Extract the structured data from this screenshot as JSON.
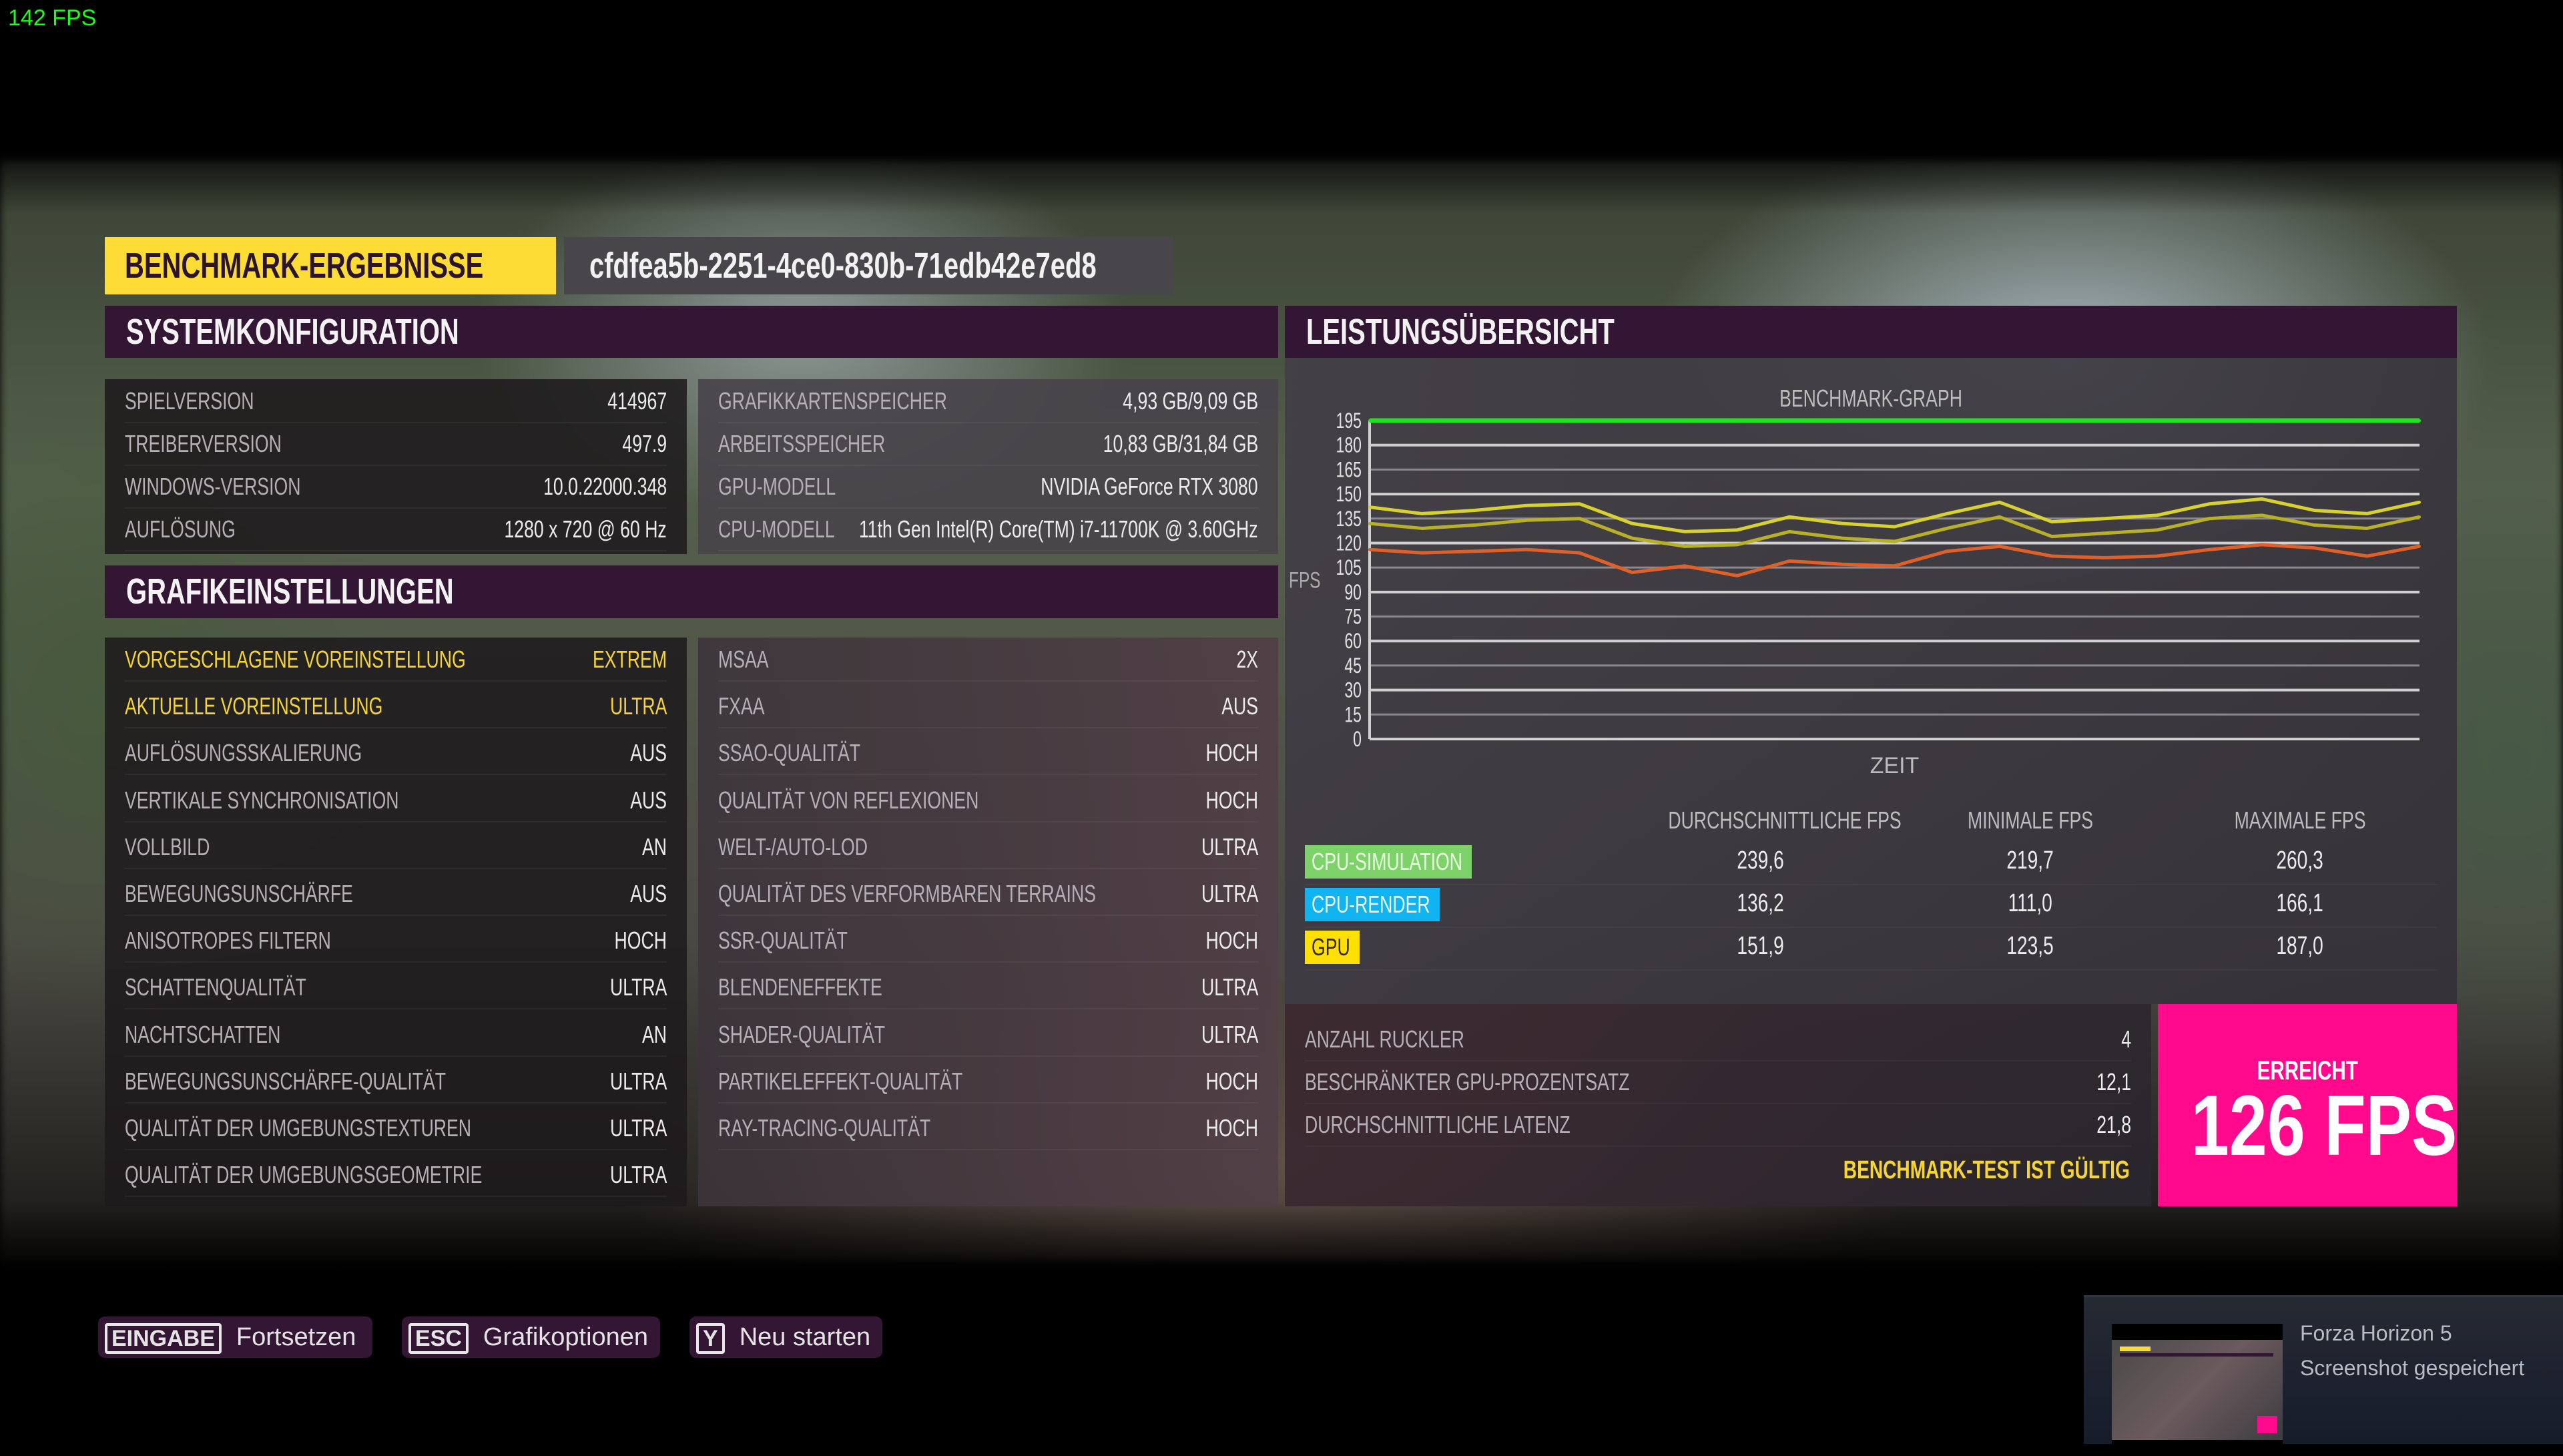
{
  "overlay": {
    "fps_counter": "142 FPS",
    "fps_color": "#1aff1a"
  },
  "header": {
    "title": "BENCHMARK-ERGEBNISSE",
    "benchmark_id": "cfdfea5b-2251-4ce0-830b-71edb42e7ed8"
  },
  "system": {
    "title": "SYSTEMKONFIGURATION",
    "left": [
      {
        "label": "SPIELVERSION",
        "value": "414967"
      },
      {
        "label": "TREIBERVERSION",
        "value": "497.9"
      },
      {
        "label": "WINDOWS-VERSION",
        "value": "10.0.22000.348"
      },
      {
        "label": "AUFLÖSUNG",
        "value": "1280 x 720 @ 60 Hz"
      }
    ],
    "right": [
      {
        "label": "GRAFIKKARTENSPEICHER",
        "value": "4,93 GB/9,09 GB"
      },
      {
        "label": "ARBEITSSPEICHER",
        "value": "10,83 GB/31,84 GB"
      },
      {
        "label": "GPU-MODELL",
        "value": "NVIDIA GeForce RTX 3080"
      },
      {
        "label": "CPU-MODELL",
        "value": "11th Gen Intel(R) Core(TM) i7-11700K @ 3.60GHz"
      }
    ]
  },
  "graphics": {
    "title": "GRAFIKEINSTELLUNGEN",
    "left": [
      {
        "label": "VORGESCHLAGENE VOREINSTELLUNG",
        "value": "EXTREM",
        "highlight": true
      },
      {
        "label": "AKTUELLE VOREINSTELLUNG",
        "value": "ULTRA",
        "highlight": true
      },
      {
        "label": "AUFLÖSUNGSSKALIERUNG",
        "value": "AUS"
      },
      {
        "label": "VERTIKALE SYNCHRONISATION",
        "value": "AUS"
      },
      {
        "label": "VOLLBILD",
        "value": "AN"
      },
      {
        "label": "BEWEGUNGSUNSCHÄRFE",
        "value": "AUS"
      },
      {
        "label": "ANISOTROPES FILTERN",
        "value": "HOCH"
      },
      {
        "label": "SCHATTENQUALITÄT",
        "value": "ULTRA"
      },
      {
        "label": "NACHTSCHATTEN",
        "value": "AN"
      },
      {
        "label": "BEWEGUNGSUNSCHÄRFE-QUALITÄT",
        "value": "ULTRA"
      },
      {
        "label": "QUALITÄT DER UMGEBUNGSTEXTUREN",
        "value": "ULTRA"
      },
      {
        "label": "QUALITÄT DER UMGEBUNGSGEOMETRIE",
        "value": "ULTRA"
      }
    ],
    "right": [
      {
        "label": "MSAA",
        "value": "2X"
      },
      {
        "label": "FXAA",
        "value": "AUS"
      },
      {
        "label": "SSAO-QUALITÄT",
        "value": "HOCH"
      },
      {
        "label": "QUALITÄT VON REFLEXIONEN",
        "value": "HOCH"
      },
      {
        "label": "WELT-/AUTO-LOD",
        "value": "ULTRA"
      },
      {
        "label": "QUALITÄT DES VERFORMBAREN TERRAINS",
        "value": "ULTRA"
      },
      {
        "label": "SSR-QUALITÄT",
        "value": "HOCH"
      },
      {
        "label": "BLENDENEFFEKTE",
        "value": "ULTRA"
      },
      {
        "label": "SHADER-QUALITÄT",
        "value": "ULTRA"
      },
      {
        "label": "PARTIKELEFFEKT-QUALITÄT",
        "value": "HOCH"
      },
      {
        "label": "RAY-TRACING-QUALITÄT",
        "value": "HOCH"
      }
    ]
  },
  "performance": {
    "title": "LEISTUNGSÜBERSICHT",
    "stats_headers": [
      "DURCHSCHNITTLICHE FPS",
      "MINIMALE FPS",
      "MAXIMALE FPS"
    ],
    "stats": [
      {
        "label": "CPU-SIMULATION",
        "color": "#7dd36a",
        "text_color": "#e8ffe0",
        "avg": "239,6",
        "min": "219,7",
        "max": "260,3"
      },
      {
        "label": "CPU-RENDER",
        "color": "#10b4f0",
        "text_color": "#e6f7ff",
        "avg": "136,2",
        "min": "111,0",
        "max": "166,1"
      },
      {
        "label": "GPU",
        "color": "#ffe000",
        "text_color": "#3a2a00",
        "avg": "151,9",
        "min": "123,5",
        "max": "187,0"
      }
    ],
    "extra": [
      {
        "label": "ANZAHL RUCKLER",
        "value": "4"
      },
      {
        "label": "BESCHRÄNKTER GPU-PROZENTSATZ",
        "value": "12,1"
      },
      {
        "label": "DURCHSCHNITTLICHE LATENZ",
        "value": "21,8"
      }
    ],
    "valid_text": "BENCHMARK-TEST IST GÜLTIG",
    "valid_color": "#f5d533",
    "result_label": "ERREICHT",
    "result_value": "126 FPS",
    "result_color": "#ff0a8c"
  },
  "chart_data": {
    "type": "line",
    "title": "BENCHMARK-GRAPH",
    "xlabel": "ZEIT",
    "ylabel": "FPS",
    "ylim": [
      0,
      195
    ],
    "yticks": [
      195,
      180,
      165,
      150,
      135,
      120,
      105,
      90,
      75,
      60,
      45,
      30,
      15,
      0
    ],
    "grid": true,
    "x": [
      0,
      1,
      2,
      3,
      4,
      5,
      6,
      7,
      8,
      9,
      10,
      11,
      12,
      13,
      14,
      15,
      16,
      17,
      18,
      19,
      20
    ],
    "series": [
      {
        "color": "#22e022",
        "values": [
          195,
          195,
          195,
          195,
          195,
          195,
          195,
          195,
          195,
          195,
          195,
          195,
          195,
          195,
          195,
          195,
          195,
          195,
          195,
          195,
          195
        ]
      },
      {
        "color": "#d8d230",
        "values": [
          142,
          138,
          140,
          143,
          144,
          132,
          127,
          128,
          136,
          132,
          130,
          138,
          145,
          133,
          135,
          137,
          144,
          147,
          140,
          138,
          145
        ]
      },
      {
        "color": "#b8b028",
        "values": [
          132,
          129,
          131,
          134,
          135,
          123,
          118,
          119,
          127,
          123,
          121,
          129,
          136,
          124,
          126,
          128,
          135,
          137,
          131,
          129,
          136
        ]
      },
      {
        "color": "#e0602a",
        "values": [
          116,
          114,
          115,
          116,
          114,
          102,
          106,
          100,
          109,
          107,
          106,
          115,
          118,
          112,
          111,
          112,
          116,
          119,
          117,
          112,
          118
        ]
      }
    ]
  },
  "footer": {
    "buttons": [
      {
        "key": "EINGABE",
        "label": "Fortsetzen"
      },
      {
        "key": "ESC",
        "label": "Grafikoptionen"
      },
      {
        "key": "Y",
        "label": "Neu starten"
      }
    ]
  },
  "notification": {
    "title": "Forza Horizon 5",
    "message": "Screenshot gespeichert"
  }
}
